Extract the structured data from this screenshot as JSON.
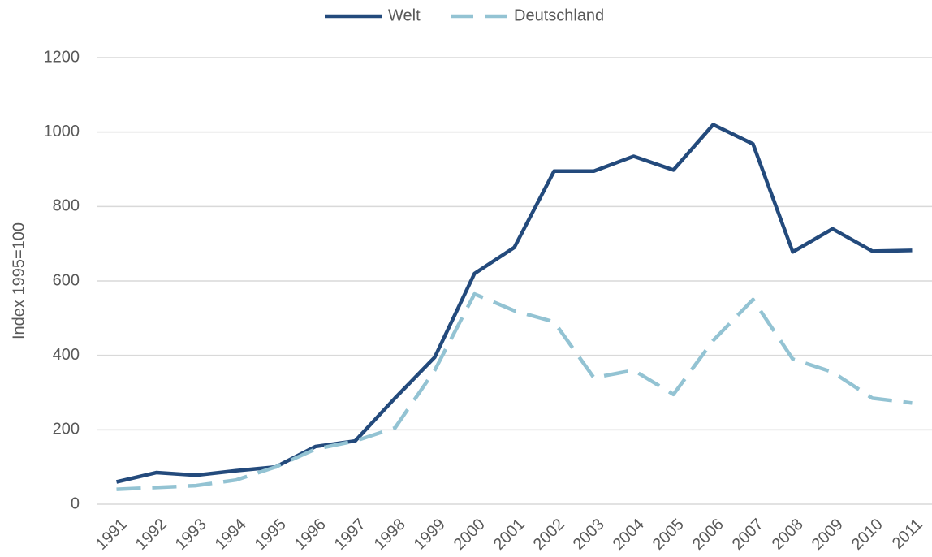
{
  "chart_data": {
    "type": "line",
    "y_label": "Index 1995=100",
    "categories": [
      "1991",
      "1992",
      "1993",
      "1994",
      "1995",
      "1996",
      "1997",
      "1998",
      "1999",
      "2000",
      "2001",
      "2002",
      "2003",
      "2004",
      "2005",
      "2006",
      "2007",
      "2008",
      "2009",
      "2010",
      "2011"
    ],
    "series": [
      {
        "name": "Welt",
        "color": "#234a7c",
        "dash": false,
        "values": [
          60,
          85,
          78,
          90,
          100,
          155,
          170,
          285,
          395,
          620,
          690,
          895,
          895,
          935,
          898,
          1020,
          968,
          678,
          740,
          680,
          682
        ]
      },
      {
        "name": "Deutschland",
        "color": "#93c3d3",
        "dash": true,
        "values": [
          40,
          45,
          50,
          65,
          100,
          148,
          170,
          205,
          360,
          565,
          520,
          490,
          340,
          360,
          295,
          440,
          550,
          390,
          355,
          285,
          272
        ]
      }
    ],
    "ylim": [
      0,
      1200
    ],
    "yticks": [
      0,
      200,
      400,
      600,
      800,
      1000,
      1200
    ],
    "grid": true,
    "legend": "top"
  }
}
